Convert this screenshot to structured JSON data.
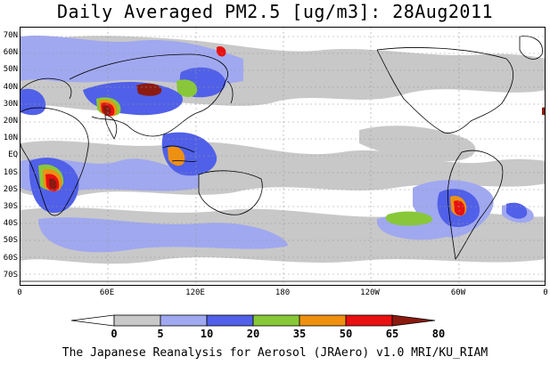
{
  "title": "Daily Averaged PM2.5 [ug/m3]: 28Aug2011",
  "credit": "The Japanese Reanalysis for Aerosol (JRAero) v1.0 MRI/KU_RIAM",
  "lat_labels": [
    "70N",
    "60N",
    "50N",
    "40N",
    "30N",
    "20N",
    "10N",
    "EQ",
    "10S",
    "20S",
    "30S",
    "40S",
    "50S",
    "60S",
    "70S"
  ],
  "lon_labels": [
    "0",
    "60E",
    "120E",
    "180",
    "120W",
    "60W",
    "0"
  ],
  "colorbar": {
    "labels": [
      "0",
      "5",
      "10",
      "20",
      "35",
      "50",
      "65",
      "80"
    ],
    "colors": [
      "#ffffff",
      "#c8c8c8",
      "#a0a8f0",
      "#5060e8",
      "#88c838",
      "#f09010",
      "#e81010",
      "#8b1a10"
    ]
  }
}
